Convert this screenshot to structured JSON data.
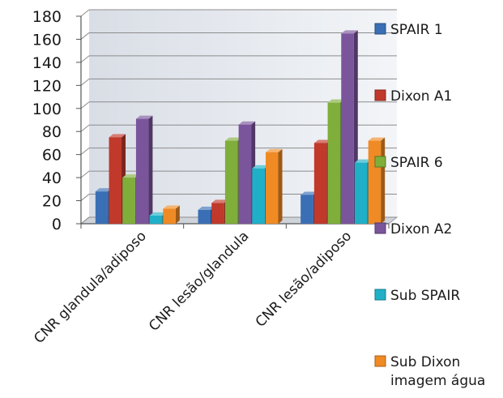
{
  "chart_data": {
    "type": "bar",
    "title": "",
    "xlabel": "",
    "ylabel": "",
    "ylim": [
      0,
      180
    ],
    "yticks": [
      0,
      20,
      40,
      60,
      80,
      100,
      120,
      140,
      160,
      180
    ],
    "grid": true,
    "legend_position": "right",
    "categories": [
      "CNR glandula/adiposo",
      "CNR lesão/glandula",
      "CNR lesão/adiposo"
    ],
    "series": [
      {
        "name": "SPAIR 1",
        "color": "#3a6fb5",
        "values": [
          28,
          12,
          25
        ]
      },
      {
        "name": "Dixon A1",
        "color": "#c0392b",
        "values": [
          75,
          18,
          70
        ]
      },
      {
        "name": "SPAIR 6",
        "color": "#7fae3a",
        "values": [
          40,
          72,
          105
        ]
      },
      {
        "name": "Dixon A2",
        "color": "#7b559b",
        "values": [
          91,
          86,
          165
        ]
      },
      {
        "name": "Sub SPAIR",
        "color": "#1fb0c7",
        "values": [
          7,
          48,
          53
        ]
      },
      {
        "name": "Sub Dixon imagem água",
        "name_lines": [
          "Sub Dixon",
          "imagem água"
        ],
        "color": "#f08a24",
        "values": [
          13,
          62,
          72
        ]
      }
    ]
  }
}
